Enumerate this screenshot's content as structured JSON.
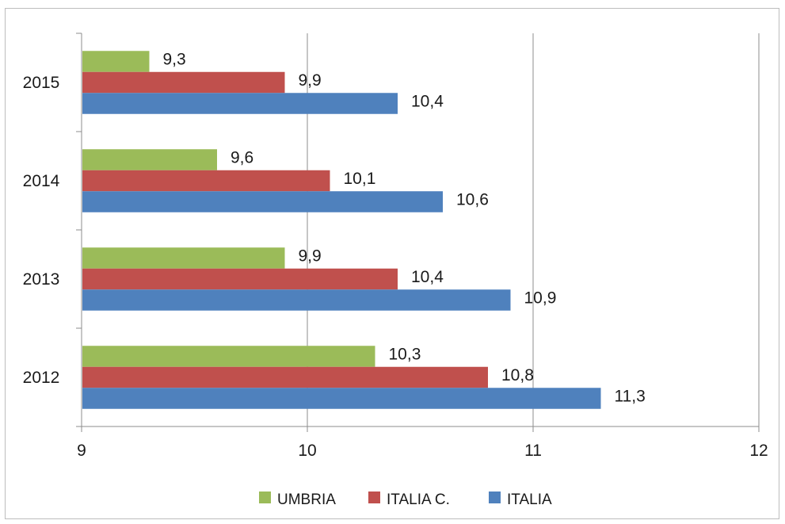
{
  "chart_data": {
    "type": "bar",
    "orientation": "horizontal",
    "categories": [
      "2012",
      "2013",
      "2014",
      "2015"
    ],
    "series": [
      {
        "name": "UMBRIA",
        "color": "#9bbb59",
        "values": [
          10.3,
          9.9,
          9.6,
          9.3
        ],
        "labels": [
          "10,3",
          "9,9",
          "9,6",
          "9,3"
        ]
      },
      {
        "name": "ITALIA C.",
        "color": "#c0504d",
        "values": [
          10.8,
          10.4,
          10.1,
          9.9
        ],
        "labels": [
          "10,8",
          "10,4",
          "10,1",
          "9,9"
        ]
      },
      {
        "name": "ITALIA",
        "color": "#4f81bd",
        "values": [
          11.3,
          10.9,
          10.6,
          10.4
        ],
        "labels": [
          "11,3",
          "10,9",
          "10,6",
          "10,4"
        ]
      }
    ],
    "xlim": [
      9,
      12
    ],
    "x_ticks": [
      "9",
      "10",
      "11",
      "12"
    ],
    "grid": "vertical",
    "legend_position": "bottom",
    "title": "",
    "xlabel": "",
    "ylabel": ""
  }
}
